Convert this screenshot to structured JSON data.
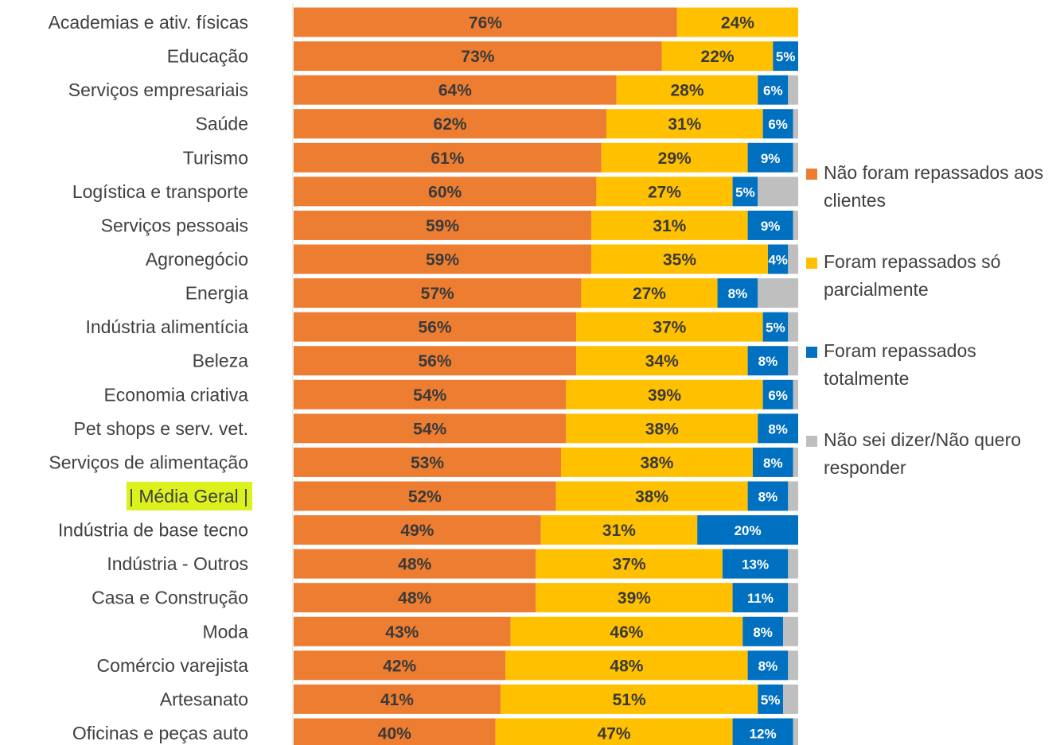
{
  "chart_data": {
    "type": "stacked-bar-horizontal",
    "categories": [
      "Academias e ativ. físicas",
      "Educação",
      "Serviços empresariais",
      "Saúde",
      "Turismo",
      "Logística e transporte",
      "Serviços pessoais",
      "Agronegócio",
      "Energia",
      "Indústria alimentícia",
      "Beleza",
      "Economia criativa",
      "Pet shops e serv. vet.",
      "Serviços de alimentação",
      "| Média Geral |",
      "Indústria de base tecno",
      "Indústria - Outros",
      "Casa e Construção",
      "Moda",
      "Comércio varejista",
      "Artesanato",
      "Oficinas e peças auto"
    ],
    "series": [
      {
        "name": "Não foram repassados aos clientes",
        "color": "#ed7d31",
        "label_color": "#3a3a3a",
        "values": [
          76,
          73,
          64,
          62,
          61,
          60,
          59,
          59,
          57,
          56,
          56,
          54,
          54,
          53,
          52,
          49,
          48,
          48,
          43,
          42,
          41,
          40
        ],
        "value_labels": [
          "76%",
          "73%",
          "64%",
          "62%",
          "61%",
          "60%",
          "59%",
          "59%",
          "57%",
          "56%",
          "56%",
          "54%",
          "54%",
          "53%",
          "52%",
          "49%",
          "48%",
          "48%",
          "43%",
          "42%",
          "41%",
          "40%"
        ]
      },
      {
        "name": "Foram repassados só parcialmente",
        "color": "#ffc000",
        "label_color": "#3a3a3a",
        "values": [
          24,
          22,
          28,
          31,
          29,
          27,
          31,
          35,
          27,
          37,
          34,
          39,
          38,
          38,
          38,
          31,
          37,
          39,
          46,
          48,
          51,
          47
        ],
        "value_labels": [
          "24%",
          "22%",
          "28%",
          "31%",
          "29%",
          "27%",
          "31%",
          "35%",
          "27%",
          "37%",
          "34%",
          "39%",
          "38%",
          "38%",
          "38%",
          "31%",
          "37%",
          "39%",
          "46%",
          "48%",
          "51%",
          "47%"
        ]
      },
      {
        "name": "Foram repassados totalmente",
        "color": "#0070c0",
        "label_color": "#ffffff",
        "values": [
          0,
          5,
          6,
          6,
          9,
          5,
          9,
          4,
          8,
          5,
          8,
          6,
          8,
          8,
          8,
          20,
          13,
          11,
          8,
          8,
          5,
          12
        ],
        "value_labels": [
          null,
          "5%",
          "6%",
          "6%",
          "9%",
          "5%",
          "9%",
          "4%",
          "8%",
          "5%",
          "8%",
          "6%",
          "8%",
          "8%",
          "8%",
          "20%",
          "13%",
          "11%",
          "8%",
          "8%",
          "5%",
          "12%"
        ]
      },
      {
        "name": "Não sei dizer/Não quero responder",
        "color": "#bfbfbf",
        "values": [
          0,
          0,
          2,
          1,
          1,
          8,
          1,
          2,
          8,
          2,
          2,
          1,
          0,
          1,
          2,
          0,
          2,
          2,
          3,
          2,
          3,
          1
        ]
      }
    ],
    "xlim": [
      0,
      100
    ],
    "highlight": {
      "index": 14,
      "color": "#dcf21e"
    },
    "legend": "right"
  }
}
